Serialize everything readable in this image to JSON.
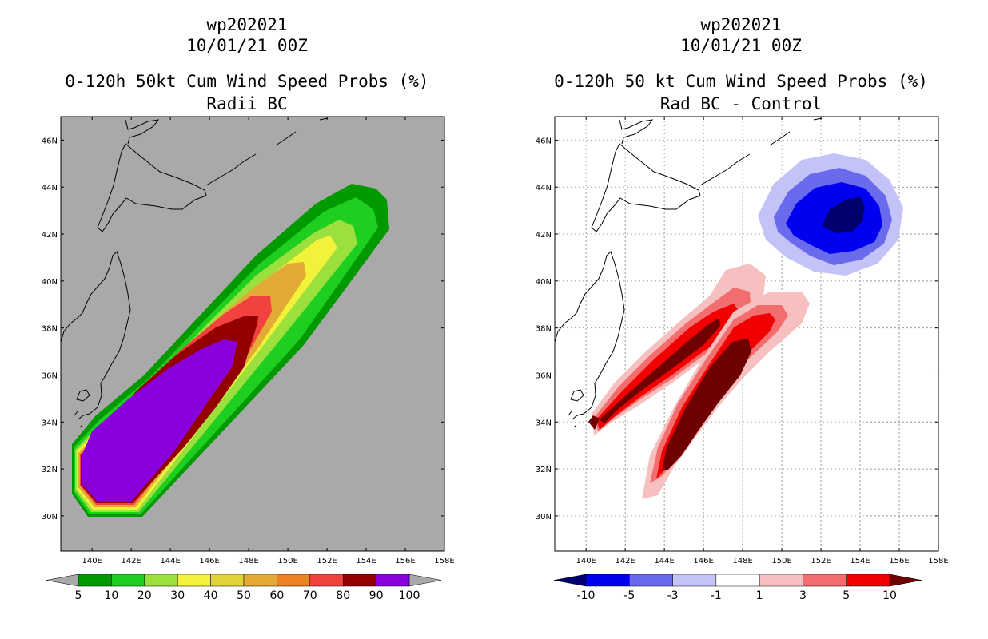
{
  "panels": [
    {
      "id": "left",
      "storm_id": "wp202021",
      "datetime": "10/01/21 00Z",
      "product": "0-120h 50kt Cum Wind Speed Probs (%)",
      "subtitle": "Radii BC",
      "background": "#a9a9a9",
      "colorbar": {
        "colors": [
          "#009a00",
          "#1fcf1f",
          "#9be03d",
          "#f2f23a",
          "#e2d33a",
          "#e3aa35",
          "#ee8225",
          "#f2423f",
          "#940000",
          "#8a00dd"
        ],
        "labels": [
          "5",
          "10",
          "20",
          "30",
          "40",
          "50",
          "60",
          "70",
          "80",
          "90",
          "100"
        ],
        "extend_color": "#a9a9a9"
      }
    },
    {
      "id": "right",
      "storm_id": "wp202021",
      "datetime": "10/01/21 00Z",
      "product": "0-120h 50 kt Cum Wind Speed Probs (%)",
      "subtitle": "Rad BC - Control",
      "background": "#ffffff",
      "colorbar": {
        "colors": [
          "#0000f0",
          "#6a6aec",
          "#c3c3f7",
          "#ffffff",
          "#f7c0c0",
          "#f26e6e",
          "#f20000"
        ],
        "labels": [
          "-10",
          "-5",
          "-3",
          "-1",
          "1",
          "3",
          "5",
          "10"
        ],
        "extend_low_color": "#00006e",
        "extend_high_color": "#6e0000"
      }
    }
  ],
  "map_axes": {
    "lon_labels": [
      "140E",
      "142E",
      "144E",
      "146E",
      "148E",
      "150E",
      "152E",
      "154E",
      "156E",
      "158E"
    ],
    "lat_labels": [
      "30N",
      "32N",
      "34N",
      "36N",
      "38N",
      "40N",
      "42N",
      "44N",
      "46N"
    ]
  },
  "chart_data": {
    "type": "heatmap",
    "variable": "50kt cumulative wind speed probability, 0-120h",
    "units": "%",
    "lon_range": [
      138.4,
      158
    ],
    "lat_range": [
      28.5,
      47
    ],
    "panels": [
      {
        "name": "Radii BC",
        "levels": [
          5,
          10,
          20,
          30,
          40,
          50,
          60,
          70,
          80,
          90,
          100
        ],
        "swath": "southwest-to-northeast band from ~140E 30.5N to ~155E 43.5N",
        "max_region": "90-100% over 139.5E-147E, 30.5N-37.5N"
      },
      {
        "name": "Rad BC - Control",
        "levels": [
          -10,
          -5,
          -3,
          -1,
          1,
          3,
          5,
          10
        ],
        "positive_lobes": "two bands: ~140.5E 34N to 148E 38.5N and ~143.5E 31N to 149.5E 38.5N",
        "negative_lobe": "centered near 153.5E 42.8N"
      }
    ]
  }
}
